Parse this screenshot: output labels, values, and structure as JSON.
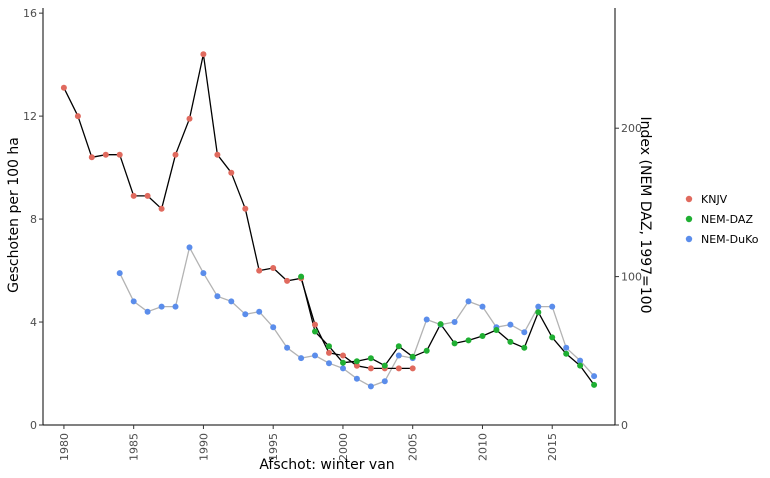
{
  "chart_data": {
    "type": "line",
    "xlabel": "Afschot: winter van",
    "ylabel_left": "Geschoten per 100 ha",
    "ylabel_right": "Index (NEM DAZ, 1997=100",
    "x_ticks": [
      "1980",
      "1985",
      "1990",
      "1995",
      "2000",
      "2005",
      "2010",
      "2015"
    ],
    "xlim": [
      1978.5,
      2019.5
    ],
    "y_left_ticks": [
      "0",
      "4",
      "8",
      "12",
      "16"
    ],
    "ylim_left": [
      0,
      16.2
    ],
    "y_right_ticks": [
      "0",
      "100",
      "200"
    ],
    "ylim_right": [
      0,
      281
    ],
    "legend_position": "right",
    "series": [
      {
        "name": "KNJV",
        "color": "#E06A5E",
        "axis": "left",
        "line_color": "#000000",
        "x": [
          1980,
          1981,
          1982,
          1983,
          1984,
          1985,
          1986,
          1987,
          1988,
          1989,
          1990,
          1991,
          1992,
          1993,
          1994,
          1995,
          1996,
          1997,
          1998,
          1999,
          2000,
          2001,
          2002,
          2003,
          2004,
          2005
        ],
        "y": [
          13.1,
          12.0,
          10.4,
          10.5,
          10.5,
          8.9,
          8.9,
          8.4,
          10.5,
          11.9,
          14.4,
          10.5,
          9.8,
          8.4,
          6.0,
          6.1,
          5.6,
          5.7,
          3.9,
          2.8,
          2.7,
          2.3,
          2.2,
          2.2,
          2.2,
          2.2
        ]
      },
      {
        "name": "NEM-DAZ",
        "color": "#1FAF32",
        "axis": "right",
        "line_color": "#000000",
        "x": [
          1997,
          1998,
          1999,
          2000,
          2001,
          2002,
          2003,
          2004,
          2005,
          2006,
          2007,
          2008,
          2009,
          2010,
          2011,
          2012,
          2013,
          2014,
          2015,
          2016,
          2017,
          2018
        ],
        "y": [
          100,
          63,
          53,
          42,
          43,
          45,
          40,
          53,
          46,
          50,
          68,
          55,
          57,
          60,
          64,
          56,
          52,
          76,
          59,
          48,
          40,
          27
        ]
      },
      {
        "name": "NEM-DuKo",
        "color": "#5B8DEB",
        "axis": "left",
        "line_color": "#B3B3B3",
        "x": [
          1984,
          1985,
          1986,
          1987,
          1988,
          1989,
          1990,
          1991,
          1992,
          1993,
          1994,
          1995,
          1996,
          1997,
          1998,
          1999,
          2000,
          2001,
          2002,
          2003,
          2004,
          2005,
          2006,
          2007,
          2008,
          2009,
          2010,
          2011,
          2012,
          2013,
          2014,
          2015,
          2016,
          2017,
          2018
        ],
        "y": [
          5.9,
          4.8,
          4.4,
          4.6,
          4.6,
          6.9,
          5.9,
          5.0,
          4.8,
          4.3,
          4.4,
          3.8,
          3.0,
          2.6,
          2.7,
          2.4,
          2.2,
          1.8,
          1.5,
          1.7,
          2.7,
          2.6,
          4.1,
          3.9,
          4.0,
          4.8,
          4.6,
          3.8,
          3.9,
          3.6,
          4.6,
          4.6,
          3.0,
          2.5,
          1.9
        ]
      }
    ]
  }
}
